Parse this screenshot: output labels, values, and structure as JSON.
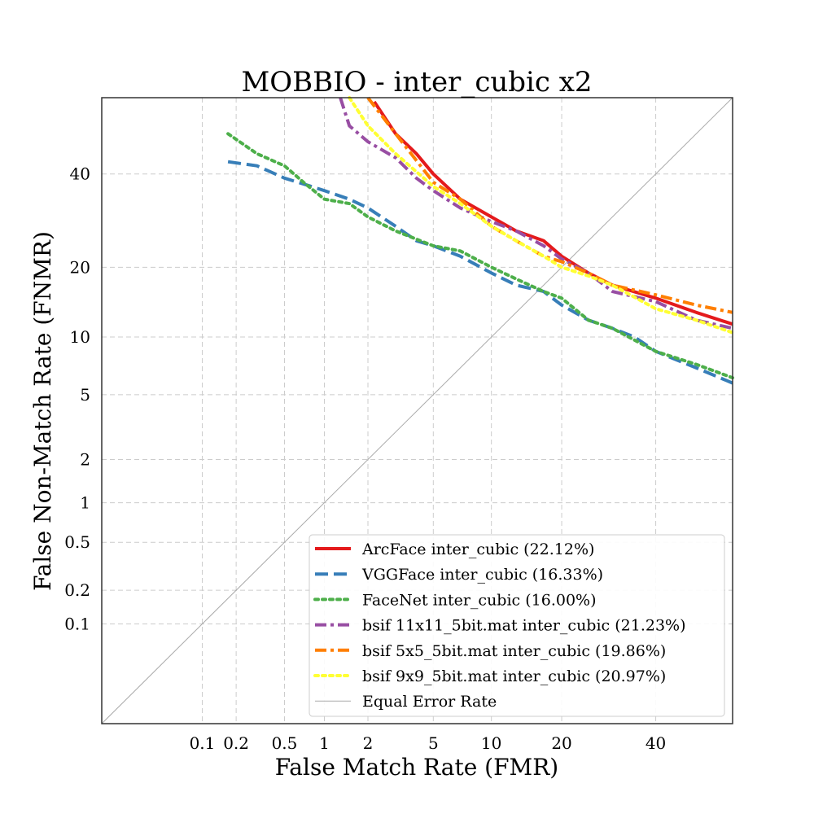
{
  "chart_data": {
    "type": "line",
    "title": "MOBBIO - inter_cubic x2",
    "xlabel": "False Match Rate (FMR)",
    "ylabel": "False Non-Match Rate (FNMR)",
    "scale": "normal-deviate (DET)",
    "xlim": [
      0.01,
      59
    ],
    "ylim": [
      0.01,
      59
    ],
    "x_ticks": [
      0.1,
      0.2,
      0.5,
      1,
      2,
      5,
      10,
      20,
      40
    ],
    "x_tick_labels": [
      "0.1",
      "0.2",
      "0.5",
      "1",
      "2",
      "5",
      "10",
      "20",
      "40"
    ],
    "y_ticks": [
      0.1,
      0.2,
      0.5,
      1,
      2,
      5,
      10,
      20,
      40
    ],
    "y_tick_labels": [
      "0.1",
      "0.2",
      "0.5",
      "1",
      "2",
      "5",
      "10",
      "20",
      "40"
    ],
    "grid": true,
    "legend_position": "lower-right",
    "series": [
      {
        "name": "ArcFace inter_cubic (22.12%)",
        "color": "#e41a1c",
        "style": "solid",
        "width": 4,
        "points": [
          [
            2.2,
            58
          ],
          [
            3,
            50
          ],
          [
            4,
            45
          ],
          [
            5,
            40
          ],
          [
            7,
            34
          ],
          [
            10,
            30
          ],
          [
            13,
            27
          ],
          [
            17,
            25
          ],
          [
            20,
            22
          ],
          [
            25,
            19
          ],
          [
            30,
            17
          ],
          [
            40,
            15
          ],
          [
            50,
            13
          ],
          [
            59,
            11.5
          ]
        ]
      },
      {
        "name": "VGGFace inter_cubic (16.33%)",
        "color": "#377eb8",
        "style": "dashed",
        "width": 4,
        "points": [
          [
            0.17,
            43
          ],
          [
            0.3,
            42
          ],
          [
            0.5,
            39
          ],
          [
            0.8,
            37
          ],
          [
            1,
            36
          ],
          [
            1.5,
            34
          ],
          [
            2,
            32
          ],
          [
            3,
            28
          ],
          [
            4,
            25
          ],
          [
            5,
            24
          ],
          [
            7,
            22
          ],
          [
            10,
            19
          ],
          [
            13,
            17
          ],
          [
            17,
            16
          ],
          [
            20,
            14
          ],
          [
            25,
            12
          ],
          [
            30,
            11
          ],
          [
            35,
            10
          ],
          [
            40,
            8.5
          ],
          [
            50,
            7
          ],
          [
            59,
            5.8
          ]
        ]
      },
      {
        "name": "FaceNet inter_cubic (16.00%)",
        "color": "#4daf4a",
        "style": "dotted",
        "width": 4,
        "points": [
          [
            0.17,
            50
          ],
          [
            0.3,
            45
          ],
          [
            0.5,
            42
          ],
          [
            0.7,
            38
          ],
          [
            1,
            34
          ],
          [
            1.5,
            33
          ],
          [
            2,
            30
          ],
          [
            3,
            27
          ],
          [
            5,
            24
          ],
          [
            7,
            23
          ],
          [
            10,
            20
          ],
          [
            13,
            18
          ],
          [
            17,
            16
          ],
          [
            20,
            15
          ],
          [
            25,
            12
          ],
          [
            30,
            11
          ],
          [
            40,
            8.5
          ],
          [
            50,
            7.3
          ],
          [
            59,
            6.2
          ]
        ]
      },
      {
        "name": "bsif 11x11_5bit.mat inter_cubic (21.23%)",
        "color": "#984ea3",
        "style": "dashdot",
        "width": 4,
        "points": [
          [
            1.3,
            59
          ],
          [
            1.5,
            52
          ],
          [
            2,
            48
          ],
          [
            3,
            44
          ],
          [
            4,
            39
          ],
          [
            5,
            36
          ],
          [
            7,
            32
          ],
          [
            10,
            29
          ],
          [
            13,
            27
          ],
          [
            17,
            24
          ],
          [
            20,
            21.5
          ],
          [
            25,
            19
          ],
          [
            30,
            16
          ],
          [
            40,
            14.5
          ],
          [
            50,
            12
          ],
          [
            59,
            11
          ]
        ]
      },
      {
        "name": "bsif 5x5_5bit.mat inter_cubic (19.86%)",
        "color": "#ff7f00",
        "style": "dashdot",
        "width": 4,
        "points": [
          [
            2,
            59
          ],
          [
            3,
            50
          ],
          [
            5,
            38
          ],
          [
            7,
            34
          ],
          [
            10,
            28
          ],
          [
            13,
            25
          ],
          [
            17,
            22
          ],
          [
            20,
            21
          ],
          [
            25,
            19
          ],
          [
            30,
            17
          ],
          [
            40,
            15.5
          ],
          [
            50,
            14
          ],
          [
            59,
            13
          ]
        ]
      },
      {
        "name": "bsif 9x9_5bit.mat inter_cubic (20.97%)",
        "color": "#ffff33",
        "style": "dotted",
        "width": 4,
        "points": [
          [
            1.5,
            59
          ],
          [
            2,
            52
          ],
          [
            3,
            45
          ],
          [
            5,
            37
          ],
          [
            7,
            33
          ],
          [
            10,
            28
          ],
          [
            13,
            25
          ],
          [
            17,
            22
          ],
          [
            20,
            20
          ],
          [
            25,
            18.5
          ],
          [
            30,
            17
          ],
          [
            40,
            13.5
          ],
          [
            50,
            12
          ],
          [
            59,
            10.5
          ]
        ]
      },
      {
        "name": "Equal Error Rate",
        "color": "#aaaaaa",
        "style": "solid",
        "width": 1,
        "points": [
          [
            0.01,
            0.01
          ],
          [
            59,
            59
          ]
        ]
      }
    ]
  }
}
